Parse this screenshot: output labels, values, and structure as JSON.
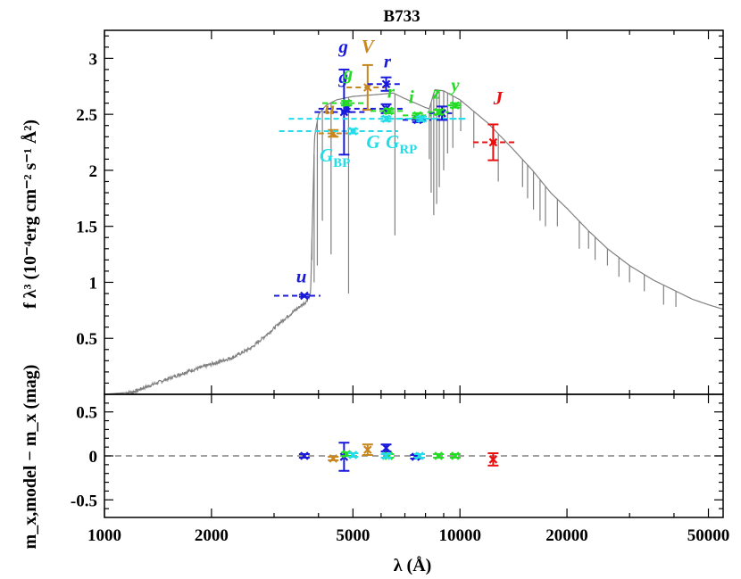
{
  "chart_data": {
    "type": "scatter",
    "title": "B733",
    "xlabel": "λ (Å)",
    "xscale": "log",
    "xlim": [
      1000,
      55000
    ],
    "x_ticks": [
      1000,
      2000,
      5000,
      10000,
      20000,
      50000
    ],
    "x_tick_labels": [
      "1000",
      "2000",
      "5000",
      "10000",
      "20000",
      "50000"
    ],
    "top_panel": {
      "ylabel": "f λ³ (10⁻⁴erg cm⁻² s⁻¹ Å²)",
      "ylim": [
        0,
        3.25
      ],
      "y_ticks": [
        0.5,
        1,
        1.5,
        2,
        2.5,
        3
      ],
      "y_tick_labels": [
        "0.5",
        "1",
        "1.5",
        "2",
        "2.5",
        "3"
      ],
      "model_spectrum": {
        "color": "#808080",
        "continuum": [
          [
            1000,
            0.0
          ],
          [
            1200,
            0.02
          ],
          [
            1400,
            0.1
          ],
          [
            1700,
            0.2
          ],
          [
            2000,
            0.27
          ],
          [
            2300,
            0.33
          ],
          [
            2600,
            0.42
          ],
          [
            2900,
            0.55
          ],
          [
            3200,
            0.67
          ],
          [
            3500,
            0.77
          ],
          [
            3700,
            0.83
          ],
          [
            3800,
            0.9
          ],
          [
            3850,
            1.6
          ],
          [
            3900,
            2.3
          ],
          [
            4000,
            2.5
          ],
          [
            4200,
            2.58
          ],
          [
            4500,
            2.63
          ],
          [
            5000,
            2.66
          ],
          [
            5500,
            2.67
          ],
          [
            6000,
            2.68
          ],
          [
            6500,
            2.69
          ],
          [
            7000,
            2.64
          ],
          [
            7500,
            2.6
          ],
          [
            8000,
            2.56
          ],
          [
            8200,
            2.55
          ],
          [
            8500,
            2.72
          ],
          [
            9000,
            2.71
          ],
          [
            10000,
            2.63
          ],
          [
            11000,
            2.52
          ],
          [
            12000,
            2.42
          ],
          [
            14000,
            2.2
          ],
          [
            16000,
            2.0
          ],
          [
            18000,
            1.8
          ],
          [
            20000,
            1.66
          ],
          [
            23000,
            1.46
          ],
          [
            26000,
            1.3
          ],
          [
            30000,
            1.15
          ],
          [
            35000,
            1.02
          ],
          [
            40000,
            0.93
          ],
          [
            45000,
            0.85
          ],
          [
            50000,
            0.8
          ],
          [
            55000,
            0.76
          ]
        ],
        "absorption_lines": [
          [
            3835,
            1.2
          ],
          [
            3889,
            1.0
          ],
          [
            3970,
            1.15
          ],
          [
            4102,
            1.55
          ],
          [
            4340,
            1.25
          ],
          [
            4861,
            0.9
          ],
          [
            6563,
            1.42
          ],
          [
            8200,
            2.1
          ],
          [
            8300,
            1.8
          ],
          [
            8440,
            1.6
          ],
          [
            8600,
            1.7
          ],
          [
            8750,
            1.85
          ],
          [
            9000,
            2.0
          ],
          [
            9230,
            2.15
          ],
          [
            9550,
            2.2
          ],
          [
            10050,
            2.35
          ],
          [
            10940,
            2.2
          ],
          [
            12820,
            1.9
          ],
          [
            15000,
            1.85
          ],
          [
            15500,
            1.75
          ],
          [
            16100,
            1.65
          ],
          [
            16800,
            1.55
          ],
          [
            17400,
            1.5
          ],
          [
            18800,
            1.5
          ],
          [
            21660,
            1.3
          ],
          [
            23000,
            1.3
          ],
          [
            24000,
            1.2
          ],
          [
            26000,
            1.15
          ],
          [
            28000,
            1.05
          ],
          [
            30000,
            1.0
          ],
          [
            33000,
            0.92
          ],
          [
            37400,
            0.8
          ],
          [
            40500,
            0.78
          ]
        ]
      },
      "points": [
        {
          "label": "u",
          "x": 3650,
          "y": 0.88,
          "yerr": 0.01,
          "xlo": 3000,
          "xhi": 4050,
          "color": "#1a1adb"
        },
        {
          "label": "u",
          "x": 4400,
          "y": 2.33,
          "yerr": 0.03,
          "xlo": 4000,
          "xhi": 4900,
          "color": "#c8861e"
        },
        {
          "label": "G_BP",
          "x": 5000,
          "y": 2.35,
          "yerr": 0.02,
          "xlo": 3100,
          "xhi": 6700,
          "color": "#22dce8"
        },
        {
          "label": "g",
          "x": 4720,
          "y": 2.52,
          "yerr": 0.38,
          "xlo": 3900,
          "xhi": 5500,
          "color": "#1a1adb"
        },
        {
          "label": "g",
          "x": 4800,
          "y": 2.55,
          "yerr": 0.03,
          "xlo": 4000,
          "xhi": 5500,
          "color": "#1a1adb"
        },
        {
          "label": "g",
          "x": 4800,
          "y": 2.6,
          "yerr": 0.02,
          "xlo": 4100,
          "xhi": 5500,
          "color": "#22dd22"
        },
        {
          "label": "V",
          "x": 5500,
          "y": 2.74,
          "yerr": 0.2,
          "xlo": 4800,
          "xhi": 6200,
          "color": "#c8861e"
        },
        {
          "label": "G",
          "x": 6200,
          "y": 2.46,
          "yerr": 0.02,
          "xlo": 3300,
          "xhi": 10500,
          "color": "#22dce8"
        },
        {
          "label": "r",
          "x": 6200,
          "y": 2.77,
          "yerr": 0.06,
          "xlo": 5500,
          "xhi": 6900,
          "color": "#1a1adb"
        },
        {
          "label": "r",
          "x": 6200,
          "y": 2.55,
          "yerr": 0.04,
          "xlo": 5600,
          "xhi": 6900,
          "color": "#1a1adb"
        },
        {
          "label": "r",
          "x": 6300,
          "y": 2.53,
          "yerr": 0.02,
          "xlo": 5600,
          "xhi": 7000,
          "color": "#22dd22"
        },
        {
          "label": "i",
          "x": 7600,
          "y": 2.45,
          "yerr": 0.02,
          "xlo": 6900,
          "xhi": 8300,
          "color": "#1a1adb"
        },
        {
          "label": "i",
          "x": 7600,
          "y": 2.49,
          "yerr": 0.02,
          "xlo": 6900,
          "xhi": 8300,
          "color": "#22dd22"
        },
        {
          "label": "G_RP",
          "x": 7800,
          "y": 2.46,
          "yerr": 0.02,
          "xlo": 6300,
          "xhi": 10500,
          "color": "#22dce8"
        },
        {
          "label": "z",
          "x": 8900,
          "y": 2.51,
          "yerr": 0.06,
          "xlo": 8200,
          "xhi": 9500,
          "color": "#1a1adb"
        },
        {
          "label": "z",
          "x": 8700,
          "y": 2.52,
          "yerr": 0.02,
          "xlo": 8100,
          "xhi": 9300,
          "color": "#22dd22"
        },
        {
          "label": "y",
          "x": 9700,
          "y": 2.58,
          "yerr": 0.02,
          "xlo": 9200,
          "xhi": 10200,
          "color": "#22dd22"
        },
        {
          "label": "J",
          "x": 12400,
          "y": 2.25,
          "yerr": 0.16,
          "xlo": 10900,
          "xhi": 14300,
          "color": "#e81010"
        }
      ],
      "labels": [
        {
          "text": "g",
          "x": 4700,
          "y": 3.05,
          "color": "#1a1adb"
        },
        {
          "text": "V",
          "x": 5500,
          "y": 3.05,
          "color": "#c8861e"
        },
        {
          "text": "r",
          "x": 6250,
          "y": 2.92,
          "color": "#1a1adb"
        },
        {
          "text": "g",
          "x": 4700,
          "y": 2.78,
          "color": "#1a1adb"
        },
        {
          "text": "g",
          "x": 4850,
          "y": 2.81,
          "color": "#22dd22"
        },
        {
          "text": "u",
          "x": 4300,
          "y": 2.5,
          "color": "#c8861e"
        },
        {
          "text": "r",
          "x": 6400,
          "y": 2.65,
          "color": "#22dd22"
        },
        {
          "text": "i",
          "x": 7300,
          "y": 2.6,
          "color": "#22dd22"
        },
        {
          "text": "z",
          "x": 8600,
          "y": 2.64,
          "color": "#22dd22"
        },
        {
          "text": "y",
          "x": 9700,
          "y": 2.71,
          "color": "#22dd22"
        },
        {
          "text": "J",
          "x": 12800,
          "y": 2.59,
          "color": "#e81010"
        },
        {
          "text": "G",
          "x": 5700,
          "y": 2.2,
          "color": "#22dce8"
        },
        {
          "text": "G",
          "x": 4450,
          "y": 2.08,
          "color": "#22dce8",
          "sub": "BP"
        },
        {
          "text": "G",
          "x": 6850,
          "y": 2.2,
          "color": "#22dce8",
          "sub": "RP"
        },
        {
          "text": "u",
          "x": 3580,
          "y": 1.0,
          "color": "#1a1adb"
        }
      ]
    },
    "bottom_panel": {
      "ylabel": "m_x,model − m_x (mag)",
      "ylim": [
        -0.7,
        0.7
      ],
      "y_ticks": [
        -0.5,
        0,
        0.5
      ],
      "y_tick_labels": [
        "-0.5",
        "0",
        "0.5"
      ],
      "reference_line": 0,
      "points": [
        {
          "x": 3650,
          "y": 0.0,
          "yerr": 0.02,
          "color": "#1a1adb"
        },
        {
          "x": 4400,
          "y": -0.03,
          "yerr": 0.02,
          "color": "#c8861e"
        },
        {
          "x": 4720,
          "y": -0.01,
          "yerr": 0.16,
          "color": "#1a1adb"
        },
        {
          "x": 4800,
          "y": 0.02,
          "yerr": 0.02,
          "color": "#22dd22"
        },
        {
          "x": 5000,
          "y": 0.01,
          "yerr": 0.02,
          "color": "#22dce8"
        },
        {
          "x": 5500,
          "y": 0.07,
          "yerr": 0.06,
          "color": "#c8861e"
        },
        {
          "x": 6200,
          "y": 0.09,
          "yerr": 0.04,
          "color": "#1a1adb"
        },
        {
          "x": 6300,
          "y": 0.0,
          "yerr": 0.02,
          "color": "#22dd22"
        },
        {
          "x": 6200,
          "y": 0.0,
          "yerr": 0.02,
          "color": "#22dce8"
        },
        {
          "x": 7500,
          "y": -0.01,
          "yerr": 0.02,
          "color": "#1a1adb"
        },
        {
          "x": 7700,
          "y": 0.0,
          "yerr": 0.02,
          "color": "#22dce8"
        },
        {
          "x": 8700,
          "y": 0.0,
          "yerr": 0.02,
          "color": "#22dd22"
        },
        {
          "x": 9700,
          "y": 0.0,
          "yerr": 0.02,
          "color": "#22dd22"
        },
        {
          "x": 12400,
          "y": -0.04,
          "yerr": 0.07,
          "color": "#e81010"
        }
      ]
    }
  }
}
